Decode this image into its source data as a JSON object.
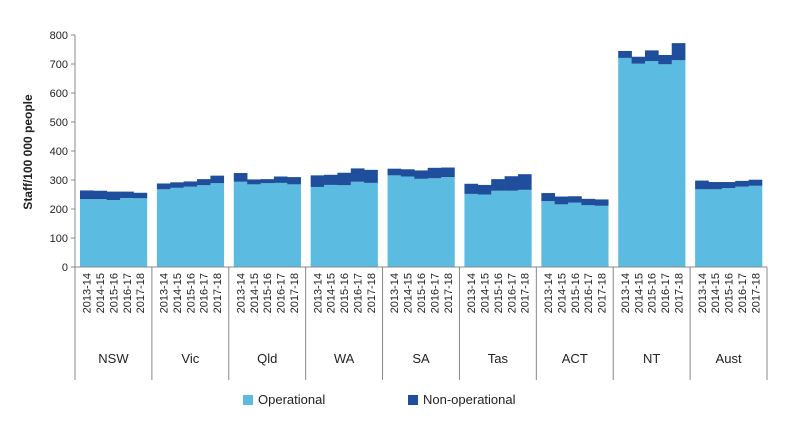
{
  "chart_data": {
    "type": "bar",
    "stacked": true,
    "ylabel": "Staff/100  000 people",
    "ylim": [
      0,
      800
    ],
    "yticks": [
      0,
      100,
      200,
      300,
      400,
      500,
      600,
      700,
      800
    ],
    "years": [
      "2013-14",
      "2014-15",
      "2015-16",
      "2016-17",
      "2017-18"
    ],
    "groups": [
      {
        "name": "NSW",
        "operational": [
          234,
          234,
          231,
          238,
          237
        ],
        "non_operational": [
          30,
          29,
          29,
          22,
          19
        ]
      },
      {
        "name": "Vic",
        "operational": [
          268,
          273,
          277,
          282,
          289
        ],
        "non_operational": [
          20,
          19,
          18,
          21,
          26
        ]
      },
      {
        "name": "Qld",
        "operational": [
          294,
          285,
          289,
          290,
          285
        ],
        "non_operational": [
          30,
          17,
          14,
          22,
          25
        ]
      },
      {
        "name": "WA",
        "operational": [
          276,
          283,
          282,
          294,
          290
        ],
        "non_operational": [
          40,
          35,
          43,
          46,
          45
        ]
      },
      {
        "name": "SA",
        "operational": [
          316,
          312,
          304,
          306,
          310
        ],
        "non_operational": [
          23,
          25,
          29,
          36,
          33
        ]
      },
      {
        "name": "Tas",
        "operational": [
          252,
          250,
          263,
          263,
          266
        ],
        "non_operational": [
          35,
          33,
          40,
          50,
          54
        ]
      },
      {
        "name": "ACT",
        "operational": [
          227,
          216,
          222,
          213,
          211
        ],
        "non_operational": [
          28,
          27,
          22,
          22,
          22
        ]
      },
      {
        "name": "NT",
        "operational": [
          721,
          701,
          710,
          699,
          713
        ],
        "non_operational": [
          24,
          24,
          37,
          32,
          59
        ]
      },
      {
        "name": "Aust",
        "operational": [
          268,
          268,
          272,
          277,
          280
        ],
        "non_operational": [
          30,
          25,
          21,
          20,
          21
        ]
      }
    ],
    "series": [
      {
        "name": "Operational",
        "color": "#5bbbe0"
      },
      {
        "name": "Non-operational",
        "color": "#1f4e9c"
      }
    ],
    "legend": "bottom",
    "grid": false
  }
}
